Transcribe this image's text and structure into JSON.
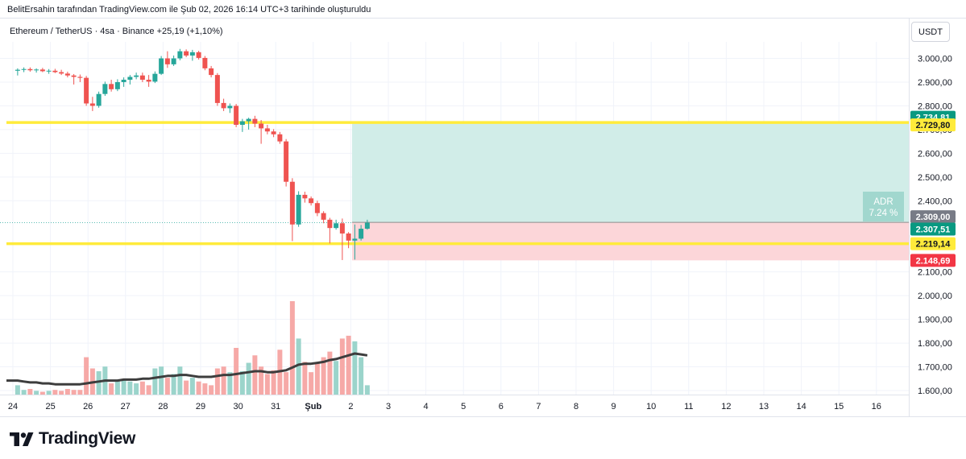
{
  "header": {
    "credit": "BelitErsahin tarafından TradingView.com ile Şub 02, 2026 16:14 UTC+3 tarihinde oluşturuldu"
  },
  "symbol": {
    "line": "Ethereum / TetherUS · 4sa · Binance  +25,19 (+1,10%)"
  },
  "currency_button": "USDT",
  "colors": {
    "up": "#26a69a",
    "down": "#ef5350",
    "level": "#ffeb3b",
    "profit_zone": "#d1ede8",
    "loss_zone": "#fcd6d9",
    "volume_ma": "#3d3d3d"
  },
  "chart_data": {
    "type": "candlestick",
    "symbol": "Ethereum / TetherUS",
    "timeframe": "4sa",
    "exchange": "Binance",
    "x_labels": [
      "24",
      "25",
      "26",
      "27",
      "28",
      "29",
      "30",
      "31",
      "Şub",
      "2",
      "3",
      "4",
      "5",
      "6",
      "7",
      "8",
      "9",
      "10",
      "11",
      "12",
      "13",
      "14",
      "15",
      "16"
    ],
    "y_ticks": [
      "3.000,00",
      "2.900,00",
      "2.800,00",
      "2.700,00",
      "2.600,00",
      "2.500,00",
      "2.400,00",
      "2.100,00",
      "2.000,00",
      "1.900,00",
      "1.800,00",
      "1.700,00",
      "1.600,00"
    ],
    "y_tick_values": [
      3000,
      2900,
      2800,
      2700,
      2600,
      2500,
      2400,
      2100,
      2000,
      1900,
      1800,
      1700,
      1600
    ],
    "ylim": [
      1572,
      3080
    ],
    "candles": [
      {
        "o": 2948,
        "h": 2958,
        "l": 2928,
        "c": 2952
      },
      {
        "o": 2952,
        "h": 2962,
        "l": 2942,
        "c": 2955
      },
      {
        "o": 2955,
        "h": 2962,
        "l": 2944,
        "c": 2950
      },
      {
        "o": 2950,
        "h": 2958,
        "l": 2940,
        "c": 2953
      },
      {
        "o": 2953,
        "h": 2960,
        "l": 2942,
        "c": 2946
      },
      {
        "o": 2946,
        "h": 2955,
        "l": 2935,
        "c": 2948
      },
      {
        "o": 2948,
        "h": 2956,
        "l": 2938,
        "c": 2942
      },
      {
        "o": 2942,
        "h": 2952,
        "l": 2930,
        "c": 2936
      },
      {
        "o": 2936,
        "h": 2944,
        "l": 2920,
        "c": 2928
      },
      {
        "o": 2928,
        "h": 2934,
        "l": 2890,
        "c": 2922
      },
      {
        "o": 2922,
        "h": 2932,
        "l": 2900,
        "c": 2918
      },
      {
        "o": 2918,
        "h": 2926,
        "l": 2800,
        "c": 2810
      },
      {
        "o": 2810,
        "h": 2838,
        "l": 2778,
        "c": 2800
      },
      {
        "o": 2800,
        "h": 2860,
        "l": 2792,
        "c": 2850
      },
      {
        "o": 2850,
        "h": 2902,
        "l": 2842,
        "c": 2892
      },
      {
        "o": 2892,
        "h": 2910,
        "l": 2860,
        "c": 2870
      },
      {
        "o": 2870,
        "h": 2912,
        "l": 2862,
        "c": 2900
      },
      {
        "o": 2900,
        "h": 2920,
        "l": 2880,
        "c": 2910
      },
      {
        "o": 2910,
        "h": 2930,
        "l": 2890,
        "c": 2922
      },
      {
        "o": 2922,
        "h": 2940,
        "l": 2912,
        "c": 2928
      },
      {
        "o": 2928,
        "h": 2940,
        "l": 2900,
        "c": 2910
      },
      {
        "o": 2910,
        "h": 2930,
        "l": 2880,
        "c": 2902
      },
      {
        "o": 2902,
        "h": 2945,
        "l": 2896,
        "c": 2935
      },
      {
        "o": 2935,
        "h": 3010,
        "l": 2930,
        "c": 3000
      },
      {
        "o": 3000,
        "h": 3030,
        "l": 2960,
        "c": 2975
      },
      {
        "o": 2975,
        "h": 3012,
        "l": 2968,
        "c": 3000
      },
      {
        "o": 3000,
        "h": 3040,
        "l": 2992,
        "c": 3030
      },
      {
        "o": 3030,
        "h": 3038,
        "l": 3005,
        "c": 3012
      },
      {
        "o": 3012,
        "h": 3036,
        "l": 2990,
        "c": 3026
      },
      {
        "o": 3026,
        "h": 3032,
        "l": 2995,
        "c": 3002
      },
      {
        "o": 3002,
        "h": 3010,
        "l": 2950,
        "c": 2958
      },
      {
        "o": 2958,
        "h": 2968,
        "l": 2920,
        "c": 2930
      },
      {
        "o": 2930,
        "h": 2938,
        "l": 2800,
        "c": 2812
      },
      {
        "o": 2812,
        "h": 2830,
        "l": 2778,
        "c": 2790
      },
      {
        "o": 2790,
        "h": 2810,
        "l": 2770,
        "c": 2800
      },
      {
        "o": 2800,
        "h": 2808,
        "l": 2710,
        "c": 2720
      },
      {
        "o": 2720,
        "h": 2745,
        "l": 2690,
        "c": 2735
      },
      {
        "o": 2735,
        "h": 2750,
        "l": 2700,
        "c": 2745
      },
      {
        "o": 2745,
        "h": 2758,
        "l": 2710,
        "c": 2725
      },
      {
        "o": 2725,
        "h": 2740,
        "l": 2640,
        "c": 2705
      },
      {
        "o": 2705,
        "h": 2720,
        "l": 2680,
        "c": 2692
      },
      {
        "o": 2692,
        "h": 2702,
        "l": 2668,
        "c": 2680
      },
      {
        "o": 2680,
        "h": 2690,
        "l": 2640,
        "c": 2650
      },
      {
        "o": 2650,
        "h": 2660,
        "l": 2460,
        "c": 2480
      },
      {
        "o": 2480,
        "h": 2495,
        "l": 2230,
        "c": 2300
      },
      {
        "o": 2300,
        "h": 2440,
        "l": 2290,
        "c": 2425
      },
      {
        "o": 2425,
        "h": 2438,
        "l": 2392,
        "c": 2410
      },
      {
        "o": 2410,
        "h": 2418,
        "l": 2380,
        "c": 2390
      },
      {
        "o": 2390,
        "h": 2400,
        "l": 2335,
        "c": 2348
      },
      {
        "o": 2348,
        "h": 2356,
        "l": 2305,
        "c": 2320
      },
      {
        "o": 2320,
        "h": 2328,
        "l": 2220,
        "c": 2285
      },
      {
        "o": 2285,
        "h": 2320,
        "l": 2278,
        "c": 2305
      },
      {
        "o": 2305,
        "h": 2325,
        "l": 2150,
        "c": 2262
      },
      {
        "o": 2262,
        "h": 2268,
        "l": 2200,
        "c": 2232
      },
      {
        "o": 2232,
        "h": 2300,
        "l": 2152,
        "c": 2240
      },
      {
        "o": 2240,
        "h": 2298,
        "l": 2232,
        "c": 2282
      },
      {
        "o": 2282,
        "h": 2320,
        "l": 2278,
        "c": 2307.51
      }
    ],
    "horizontal_levels": [
      2729.8,
      2219.14
    ],
    "position": {
      "type": "long",
      "entry": 2309.0,
      "target": 2734.81,
      "stop": 2148.69
    },
    "adr": {
      "label": "ADR",
      "value": "7.24 %"
    },
    "price_labels": [
      {
        "text": "2.734,81",
        "value": 2734.81,
        "kind": "target"
      },
      {
        "text": "2.729,80",
        "value": 2729.8,
        "kind": "level"
      },
      {
        "text": "2.309,00",
        "value": 2309.0,
        "kind": "entry"
      },
      {
        "text": "2.307,51",
        "value": 2307.51,
        "kind": "last"
      },
      {
        "text": "2.219,14",
        "value": 2219.14,
        "kind": "level"
      },
      {
        "text": "2.148,69",
        "value": 2148.69,
        "kind": "stop"
      }
    ],
    "volume_rel": [
      0.1,
      0.05,
      0.06,
      0.04,
      0.03,
      0.04,
      0.05,
      0.04,
      0.06,
      0.05,
      0.05,
      0.4,
      0.28,
      0.25,
      0.3,
      0.12,
      0.15,
      0.16,
      0.14,
      0.12,
      0.14,
      0.1,
      0.28,
      0.3,
      0.18,
      0.22,
      0.3,
      0.15,
      0.18,
      0.14,
      0.12,
      0.1,
      0.28,
      0.3,
      0.24,
      0.5,
      0.25,
      0.34,
      0.42,
      0.3,
      0.22,
      0.26,
      0.48,
      0.24,
      1.0,
      0.6,
      0.35,
      0.24,
      0.34,
      0.4,
      0.46,
      0.36,
      0.6,
      0.63,
      0.57,
      0.4,
      0.1
    ],
    "volume_ma_rel": [
      0.15,
      0.14,
      0.13,
      0.13,
      0.12,
      0.12,
      0.11,
      0.11,
      0.11,
      0.11,
      0.11,
      0.12,
      0.13,
      0.14,
      0.15,
      0.15,
      0.15,
      0.16,
      0.16,
      0.16,
      0.17,
      0.17,
      0.18,
      0.19,
      0.2,
      0.2,
      0.21,
      0.21,
      0.2,
      0.19,
      0.19,
      0.19,
      0.2,
      0.21,
      0.21,
      0.22,
      0.23,
      0.24,
      0.25,
      0.25,
      0.24,
      0.24,
      0.25,
      0.26,
      0.29,
      0.32,
      0.33,
      0.33,
      0.34,
      0.35,
      0.37,
      0.38,
      0.4,
      0.42,
      0.44,
      0.43,
      0.42
    ]
  }
}
